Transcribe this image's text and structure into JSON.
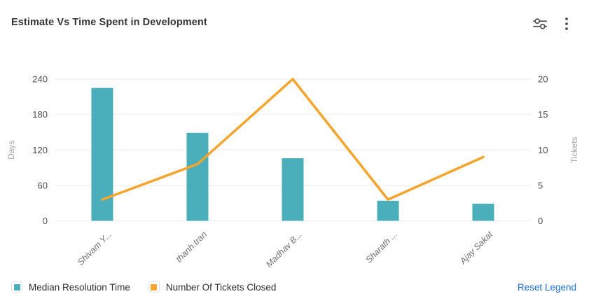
{
  "header": {
    "title": "Estimate Vs Time Spent in Development",
    "icons": [
      "sliders-icon",
      "kebab-menu-icon"
    ]
  },
  "chart_data": {
    "type": "combo-bar-line",
    "title": "Estimate Vs Time Spent in Development",
    "categories": [
      "Shivam Y...",
      "thanh.tran",
      "Madhav B...",
      "Sharath ...",
      "Ajay Sakat"
    ],
    "series": [
      {
        "name": "Median Resolution Time",
        "type": "bar",
        "axis": "left",
        "color": "#4aafba",
        "values": [
          225,
          149,
          106,
          34,
          29
        ]
      },
      {
        "name": "Number Of Tickets Closed",
        "type": "line",
        "axis": "right",
        "color": "#f6a42d",
        "values": [
          3,
          8,
          20,
          3,
          9
        ]
      }
    ],
    "left_axis": {
      "label": "Days",
      "ticks": [
        0,
        60,
        120,
        180,
        240
      ],
      "max": 240
    },
    "right_axis": {
      "label": "Tickets",
      "ticks": [
        0,
        5,
        10,
        15,
        20
      ],
      "max": 20
    },
    "grid": true,
    "legend_position": "bottom",
    "x_label_rotation": -45
  },
  "legend": {
    "reset_label": "Reset Legend",
    "reset_color": "#1d6fd1"
  },
  "colors": {
    "grid": "#f1f1f3",
    "tick": "#4d4d4d",
    "axisname": "#a6a6a6",
    "xlabel": "#707070",
    "icon": "#4f4f4f"
  }
}
